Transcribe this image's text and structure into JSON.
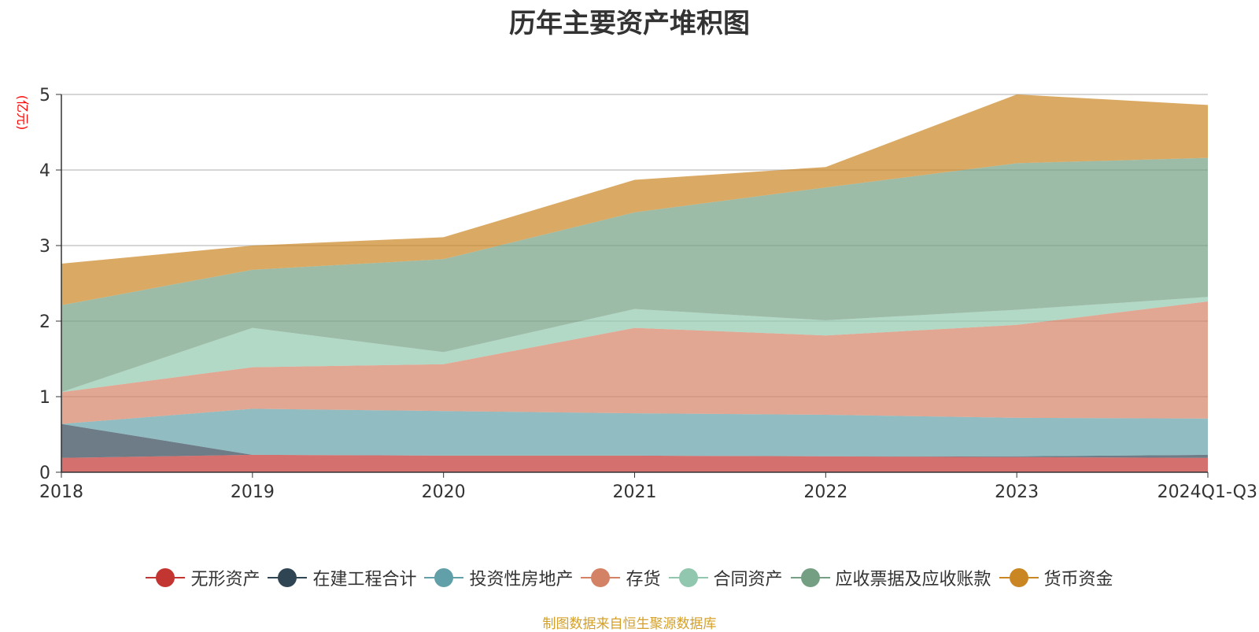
{
  "chart_data": {
    "type": "area",
    "stacked": true,
    "title": "历年主要资产堆积图",
    "ylabel": "(亿元)",
    "xlabel": "",
    "categories": [
      "2018",
      "2019",
      "2020",
      "2021",
      "2022",
      "2023",
      "2024Q1-Q3"
    ],
    "ylim": [
      0,
      5
    ],
    "yticks": [
      "0",
      "1",
      "2",
      "3",
      "4",
      "5"
    ],
    "grid": true,
    "legend_position": "bottom",
    "series": [
      {
        "name": "无形资产",
        "color": "#c23531",
        "values": [
          0.19,
          0.23,
          0.22,
          0.22,
          0.21,
          0.2,
          0.19
        ]
      },
      {
        "name": "在建工程合计",
        "color": "#2f4554",
        "values": [
          0.45,
          0.0,
          0.0,
          0.0,
          0.0,
          0.01,
          0.04
        ]
      },
      {
        "name": "投资性房地产",
        "color": "#61a0a8",
        "values": [
          0.0,
          0.61,
          0.59,
          0.56,
          0.55,
          0.51,
          0.48
        ]
      },
      {
        "name": "存货",
        "color": "#d48265",
        "values": [
          0.42,
          0.55,
          0.62,
          1.13,
          1.05,
          1.23,
          1.55
        ]
      },
      {
        "name": "合同资产",
        "color": "#91c7ae",
        "values": [
          0.0,
          0.52,
          0.16,
          0.25,
          0.2,
          0.2,
          0.06
        ]
      },
      {
        "name": "应收票据及应收账款",
        "color": "#749f83",
        "values": [
          1.15,
          0.77,
          1.23,
          1.28,
          1.76,
          1.94,
          1.84
        ]
      },
      {
        "name": "货币资金",
        "color": "#ca8622",
        "values": [
          0.55,
          0.32,
          0.29,
          0.43,
          0.27,
          0.91,
          0.7
        ]
      }
    ]
  },
  "source_note": "制图数据来自恒生聚源数据库"
}
